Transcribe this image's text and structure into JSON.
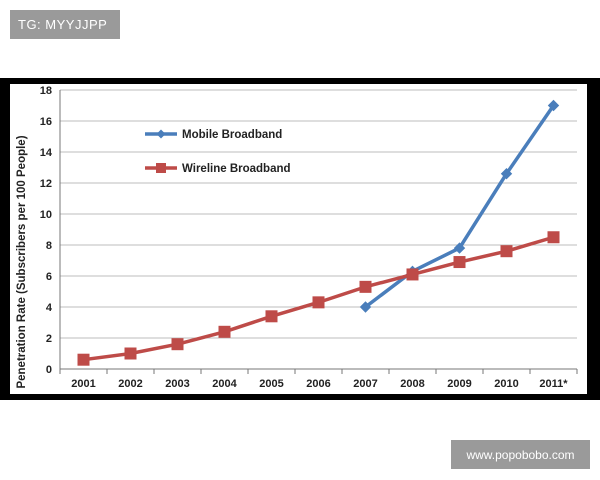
{
  "watermarks": {
    "top": "TG: MYYJJPP",
    "bottom": "www.popobobo.com"
  },
  "chart_data": {
    "type": "line",
    "title": "",
    "xlabel": "",
    "ylabel": "Penetration Rate (Subscribers per 100 People)",
    "categories": [
      "2001",
      "2002",
      "2003",
      "2004",
      "2005",
      "2006",
      "2007",
      "2008",
      "2009",
      "2010",
      "2011*"
    ],
    "ylim": [
      0,
      18
    ],
    "yticks": [
      0,
      2,
      4,
      6,
      8,
      10,
      12,
      14,
      16,
      18
    ],
    "grid": true,
    "legend_position": "top-left",
    "series": [
      {
        "name": "Mobile Broadband",
        "color": "#4a7ebb",
        "marker": "diamond",
        "values": [
          null,
          null,
          null,
          null,
          null,
          null,
          4.0,
          6.3,
          7.8,
          12.6,
          17.0
        ]
      },
      {
        "name": "Wireline Broadband",
        "color": "#be4b48",
        "marker": "square",
        "values": [
          0.6,
          1.0,
          1.6,
          2.4,
          3.4,
          4.3,
          5.3,
          6.1,
          6.9,
          7.6,
          8.5
        ]
      }
    ]
  }
}
